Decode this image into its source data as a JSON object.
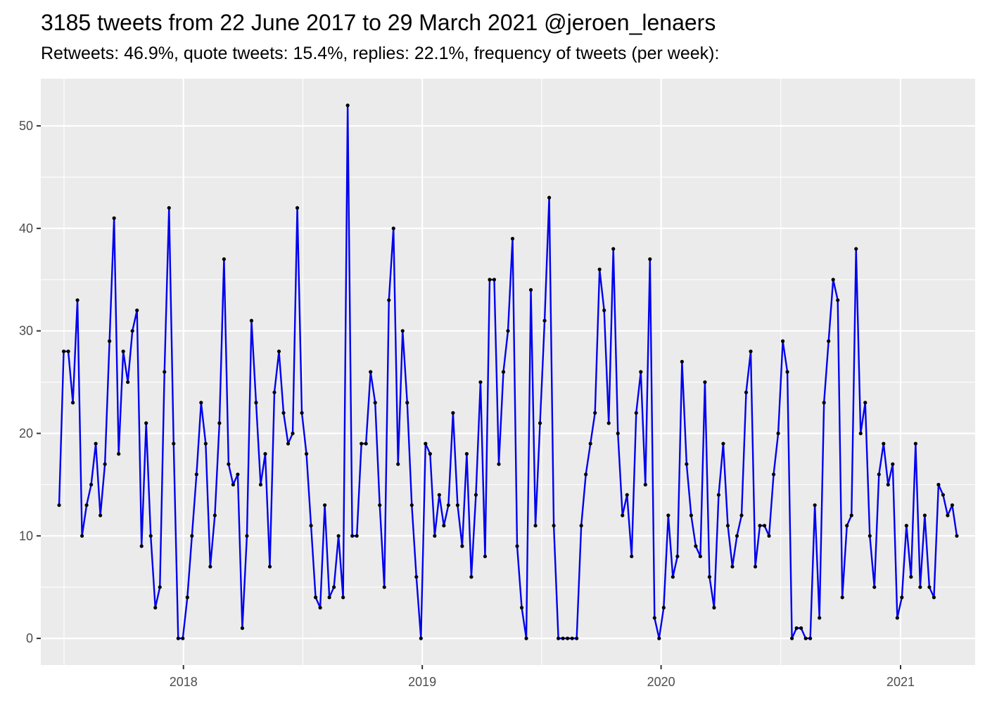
{
  "chart_data": {
    "type": "line",
    "title": "3185 tweets from 22 June 2017 to 29 March 2021 @jeroen_lenaers",
    "subtitle": "Retweets: 46.9%, quote tweets: 15.4%, replies: 22.1%, frequency of tweets (per week):",
    "xlabel": "",
    "ylabel": "",
    "x_start": "2017-06-25",
    "x_interval_days": 7,
    "xlim": [
      "2017-05-28",
      "2021-04-25"
    ],
    "ylim": [
      -2.6,
      54.6
    ],
    "y_ticks": [
      0,
      10,
      20,
      30,
      40,
      50
    ],
    "x_ticks": [
      {
        "label": "2018",
        "date": "2018-01-01"
      },
      {
        "label": "2019",
        "date": "2019-01-01"
      },
      {
        "label": "2020",
        "date": "2020-01-01"
      },
      {
        "label": "2021",
        "date": "2021-01-01"
      }
    ],
    "grid": true,
    "legend": "none",
    "line_color": "#0000ee",
    "point_color": "#000000",
    "panel_color": "#ebebeb",
    "series": [
      {
        "values": [
          13,
          28,
          28,
          23,
          33,
          10,
          13,
          15,
          19,
          12,
          17,
          29,
          41,
          18,
          28,
          25,
          30,
          32,
          9,
          21,
          10,
          3,
          5,
          26,
          42,
          19,
          0,
          0,
          4,
          10,
          16,
          23,
          19,
          7,
          12,
          21,
          37,
          17,
          15,
          16,
          1,
          10,
          31,
          23,
          15,
          18,
          7,
          24,
          28,
          22,
          19,
          20,
          42,
          22,
          18,
          11,
          4,
          3,
          13,
          4,
          5,
          10,
          4,
          52,
          10,
          10,
          19,
          19,
          26,
          23,
          13,
          5,
          33,
          40,
          17,
          30,
          23,
          13,
          6,
          0,
          19,
          18,
          10,
          14,
          11,
          13,
          22,
          13,
          9,
          18,
          6,
          14,
          25,
          8,
          35,
          35,
          17,
          26,
          30,
          39,
          9,
          3,
          0,
          34,
          11,
          21,
          31,
          43,
          11,
          0,
          0,
          0,
          0,
          0,
          11,
          16,
          19,
          22,
          36,
          32,
          21,
          38,
          20,
          12,
          14,
          8,
          22,
          26,
          15,
          37,
          2,
          0,
          3,
          12,
          6,
          8,
          27,
          17,
          12,
          9,
          8,
          25,
          6,
          3,
          14,
          19,
          11,
          7,
          10,
          12,
          24,
          28,
          7,
          11,
          11,
          10,
          16,
          20,
          29,
          26,
          0,
          1,
          1,
          0,
          0,
          13,
          2,
          23,
          29,
          35,
          33,
          4,
          11,
          12,
          38,
          20,
          23,
          10,
          5,
          16,
          19,
          15,
          17,
          2,
          4,
          11,
          6,
          19,
          5,
          12,
          5,
          4,
          15,
          14,
          12,
          13,
          10
        ]
      }
    ]
  }
}
